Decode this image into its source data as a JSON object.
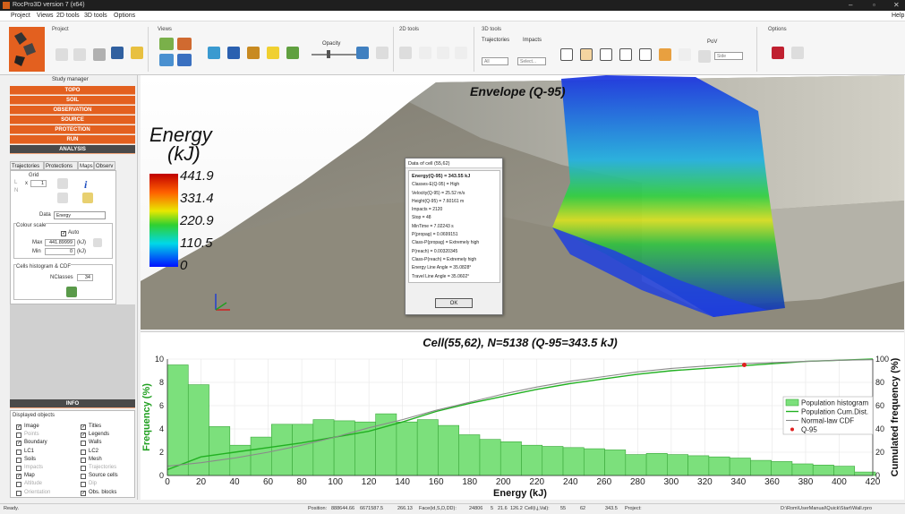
{
  "window": {
    "title": "RocPro3D version 7 (x64)",
    "controls": [
      "–",
      "▫",
      "✕"
    ]
  },
  "menu": [
    "Project",
    "Views",
    "2D tools",
    "3D tools",
    "Options"
  ],
  "menu_help": "Help",
  "ribbon": {
    "groups": {
      "project": "Project",
      "views": "Views",
      "tools2d": "2D tools",
      "tools3d": "3D tools",
      "options": "Options"
    },
    "opacity": "Opacity",
    "trajectories": "Trajectories",
    "impacts": "Impacts",
    "traj_select": "All",
    "impacts_select": "Select...",
    "pov": "PoV",
    "pov_select": "Side"
  },
  "sidebar": {
    "title": "Study manager",
    "sections": [
      "TOPO",
      "SOIL",
      "OBSERVATION",
      "SOURCE",
      "PROTECTION",
      "RUN"
    ],
    "analysis": "ANALYSIS",
    "tabs": [
      "Trajectories",
      "Protections",
      "Maps",
      "Observ"
    ],
    "grid_label": "Grid",
    "radio_l": "L",
    "radio_n": "N",
    "grid_x": "x",
    "grid_val": "1",
    "data_label": "Data",
    "data_value": "Energy",
    "colour_scale": "Colour scale",
    "auto": "Auto",
    "max_label": "Max",
    "max_value": "441.89999",
    "max_unit": "(kJ)",
    "min_label": "Min",
    "min_value": "0",
    "min_unit": "(kJ)",
    "cells_label": "Cells histogram & CDF",
    "nclasses_label": "NClasses",
    "nclasses_value": "34",
    "info": "INFO",
    "displayed": "Displayed objects",
    "objects": [
      {
        "label": "Image",
        "checked": true,
        "active": true
      },
      {
        "label": "Titles",
        "checked": true,
        "active": true
      },
      {
        "label": "Points",
        "checked": false,
        "active": false
      },
      {
        "label": "Legends",
        "checked": true,
        "active": true
      },
      {
        "label": "Boundary",
        "checked": true,
        "active": true
      },
      {
        "label": "Walls",
        "checked": false,
        "active": true
      },
      {
        "label": "LC1",
        "checked": false,
        "active": true
      },
      {
        "label": "LC2",
        "checked": false,
        "active": true
      },
      {
        "label": "Soils",
        "checked": false,
        "active": true
      },
      {
        "label": "Mesh",
        "checked": false,
        "active": true
      },
      {
        "label": "Impacts",
        "checked": false,
        "active": false
      },
      {
        "label": "Trajectories",
        "checked": false,
        "active": false
      },
      {
        "label": "Map",
        "checked": true,
        "active": true
      },
      {
        "label": "Source cells",
        "checked": false,
        "active": true
      },
      {
        "label": "Altitude",
        "checked": false,
        "active": false
      },
      {
        "label": "Dip",
        "checked": false,
        "active": false
      },
      {
        "label": "Orientation",
        "checked": false,
        "active": false
      },
      {
        "label": "Obs. blocks",
        "checked": true,
        "active": true
      }
    ]
  },
  "view3d": {
    "title": "Envelope (Q-95)",
    "legend_title": [
      "Energy",
      "(kJ)"
    ],
    "legend_values": [
      "441.9",
      "331.4",
      "220.9",
      "110.5",
      "0"
    ]
  },
  "dialog": {
    "title": "Data of cell (55,62)",
    "lines": [
      "Energy(Q-95) = 343.55 kJ",
      "Classes-E(Q-95) = High",
      "Velocity(Q-95) = 25.52 m/s",
      "Height(Q-95) = 7.60161 m",
      "Impacts = 2120",
      "Stop = 48",
      "MinTime = 7.02243 s",
      "P(propag) = 0.0699151",
      "Class-P(propag) = Extremely high",
      "P(reach) = 0.00320345",
      "Class-P(reach) = Extremely high",
      "Energy Line Angle = 35.0828°",
      "Travel Line Angle = 35.0602°"
    ],
    "ok": "OK"
  },
  "chart_data": {
    "type": "bar",
    "title": "Cell(55,62), N=5138 (Q-95=343.5 kJ)",
    "xlabel": "Energy (kJ)",
    "ylabel": "Frequency (%)",
    "y2label": "Cumulated frequency (%)",
    "xlim": [
      0,
      420
    ],
    "ylim": [
      0,
      10
    ],
    "y2lim": [
      0,
      100
    ],
    "xticks": [
      0,
      20,
      40,
      60,
      80,
      100,
      120,
      140,
      160,
      180,
      200,
      220,
      240,
      260,
      280,
      300,
      320,
      340,
      360,
      380,
      400,
      420
    ],
    "yticks": [
      0,
      2,
      4,
      6,
      8,
      10
    ],
    "y2ticks": [
      0,
      20,
      40,
      60,
      80,
      100
    ],
    "bin_width": 12.4,
    "bins_start": [
      0,
      12.4,
      24.8,
      37.2,
      49.6,
      62,
      74.4,
      86.8,
      99.2,
      111.6,
      124,
      136.4,
      148.8,
      161.2,
      173.6,
      186,
      198.4,
      210.8,
      223.2,
      235.6,
      248,
      260.4,
      272.8,
      285.2,
      297.6,
      310,
      322.4,
      334.8,
      347.2,
      359.6,
      372,
      384.4,
      396.8,
      409.2
    ],
    "values": [
      9.5,
      7.8,
      4.2,
      2.6,
      3.3,
      4.4,
      4.4,
      4.8,
      4.7,
      4.6,
      5.3,
      4.6,
      4.8,
      4.3,
      3.5,
      3.1,
      2.9,
      2.6,
      2.5,
      2.4,
      2.3,
      2.2,
      1.8,
      1.9,
      1.8,
      1.7,
      1.6,
      1.5,
      1.3,
      1.2,
      1.0,
      0.9,
      0.8,
      0.3
    ],
    "series": [
      {
        "name": "Population Cum.Dist.",
        "x": [
          0,
          20,
          40,
          60,
          80,
          100,
          120,
          140,
          160,
          180,
          200,
          220,
          240,
          260,
          280,
          300,
          320,
          340,
          360,
          380,
          400,
          420
        ],
        "y": [
          5,
          16,
          20,
          24,
          28,
          33,
          38,
          46,
          55,
          62,
          68,
          74,
          79,
          83,
          87,
          90,
          92,
          94,
          96,
          98,
          99,
          100
        ]
      },
      {
        "name": "Normal-law CDF",
        "x": [
          0,
          20,
          40,
          60,
          80,
          100,
          120,
          140,
          160,
          180,
          200,
          220,
          240,
          260,
          280,
          300,
          320,
          340,
          360,
          380,
          400,
          420
        ],
        "y": [
          8,
          11,
          15,
          20,
          26,
          33,
          41,
          48,
          56,
          63,
          70,
          76,
          81,
          85,
          89,
          92,
          94,
          96,
          97,
          98,
          99,
          99.5
        ]
      }
    ],
    "marker": {
      "name": "Q-95",
      "x": 343.5,
      "y": 95
    },
    "legend": [
      "Population histogram",
      "Population Cum.Dist.",
      "Normal-law CDF",
      "Q-95"
    ],
    "colors": {
      "bar": "#7ce07c",
      "bar_edge": "#3aa83a",
      "cum": "#21b021",
      "normal": "#8a8a8a",
      "marker": "#e02020"
    }
  },
  "status": {
    "ready": "Ready.",
    "position_label": "Position:",
    "pos_x": "888644.66",
    "pos_y": "6671587.5",
    "z_label": "266.13",
    "face_label": "Face(id,S,D,DD):",
    "face_id": "24806",
    "face_s": "5",
    "face_d": "21.6",
    "face_dd": "126.2",
    "cell_label": "Cell(i,j,Val):",
    "cell_i": "55",
    "cell_j": "62",
    "cell_val": "343.5",
    "project_label": "Project:",
    "project_path": "D:\\Rom\\UserManual\\Quick\\Start\\Wall.rpro"
  }
}
